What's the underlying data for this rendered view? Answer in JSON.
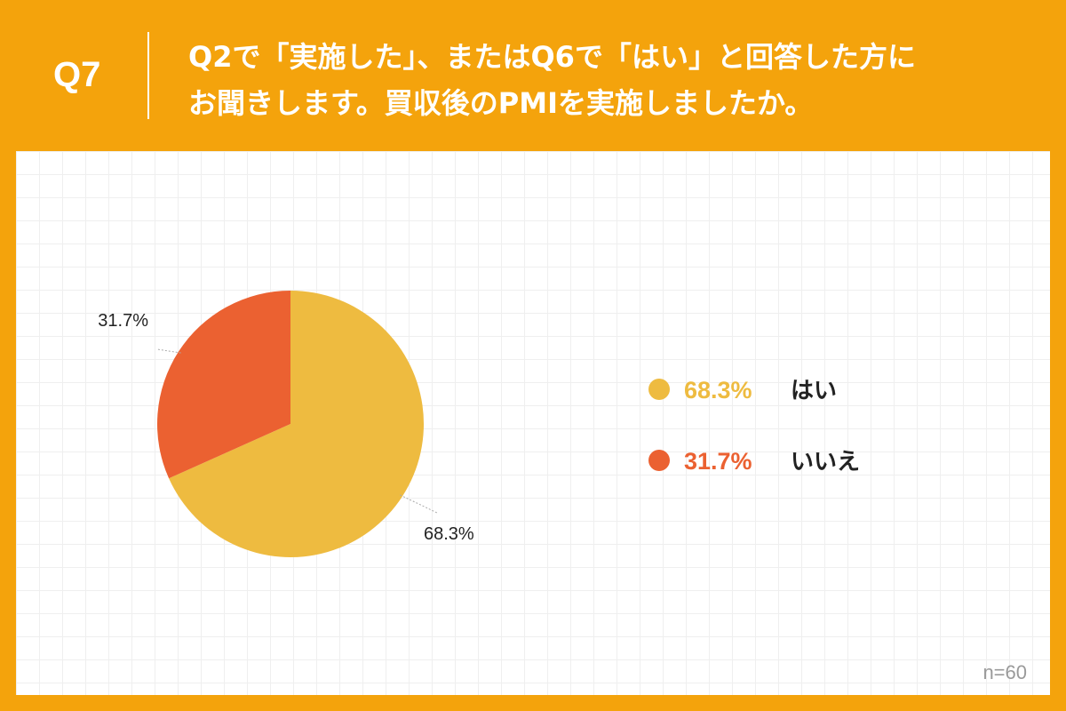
{
  "header": {
    "question_number": "Q7",
    "question_line1": "Q2で「実施した」、またはQ6で「はい」と回答した方に",
    "question_line2": "お聞きします。買収後のPMIを実施しましたか。"
  },
  "footer": {
    "sample_size": "n=60"
  },
  "colors": {
    "frame": "#f4a30c",
    "yes": "#eebb40",
    "no": "#eb6131"
  },
  "chart_data": {
    "type": "pie",
    "title": "",
    "unit": "%",
    "series": [
      {
        "name": "はい",
        "value": 68.3,
        "label": "68.3%",
        "color": "#eebb40"
      },
      {
        "name": "いいえ",
        "value": 31.7,
        "label": "31.7%",
        "color": "#eb6131"
      }
    ],
    "legend_placement": "right"
  }
}
